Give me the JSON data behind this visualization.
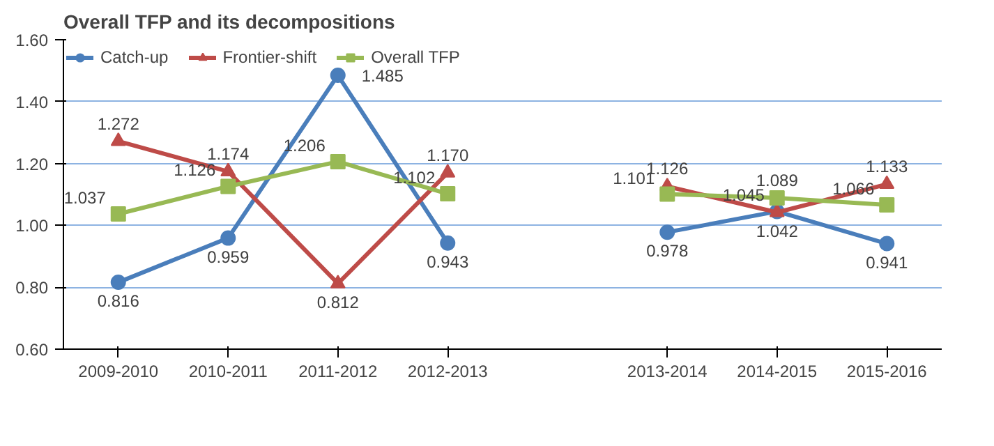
{
  "chart_data": {
    "type": "line",
    "title": "Overall TFP and its decompositions",
    "categories": [
      "2009-2010",
      "2010-2011",
      "2011-2012",
      "2012-2013",
      null,
      "2013-2014",
      "2014-2015",
      "2015-2016"
    ],
    "series": [
      {
        "name": "Catch-up",
        "color": "#4a7ebb",
        "marker": "circle",
        "values": [
          0.816,
          0.959,
          1.485,
          0.943,
          null,
          0.978,
          1.045,
          0.941
        ],
        "value_labels": [
          "0.816",
          "0.959",
          "1.485",
          "0.943",
          null,
          "0.978",
          "1.045",
          "0.941"
        ]
      },
      {
        "name": "Frontier-shift",
        "color": "#be4b48",
        "marker": "triangle",
        "values": [
          1.272,
          1.174,
          0.812,
          1.17,
          null,
          1.126,
          1.042,
          1.133
        ],
        "value_labels": [
          "1.272",
          "1.174",
          "0.812",
          "1.170",
          null,
          "1.126",
          "1.042",
          "1.133"
        ]
      },
      {
        "name": "Overall TFP",
        "color": "#98b954",
        "marker": "square",
        "values": [
          1.037,
          1.126,
          1.206,
          1.102,
          null,
          1.101,
          1.089,
          1.066
        ],
        "value_labels": [
          "1.037",
          "1.126",
          "1.206",
          "1.102",
          null,
          "1.101",
          "1.089",
          "1.066"
        ]
      }
    ],
    "ylim": [
      0.6,
      1.6
    ],
    "yticks": [
      {
        "value": 0.6,
        "label": "0.60"
      },
      {
        "value": 0.8,
        "label": "0.80"
      },
      {
        "value": 1.0,
        "label": "1.00"
      },
      {
        "value": 1.2,
        "label": "1.20"
      },
      {
        "value": 1.4,
        "label": "1.40"
      },
      {
        "value": 1.6,
        "label": "1.60"
      }
    ],
    "grid": "y",
    "legend": "top left"
  }
}
